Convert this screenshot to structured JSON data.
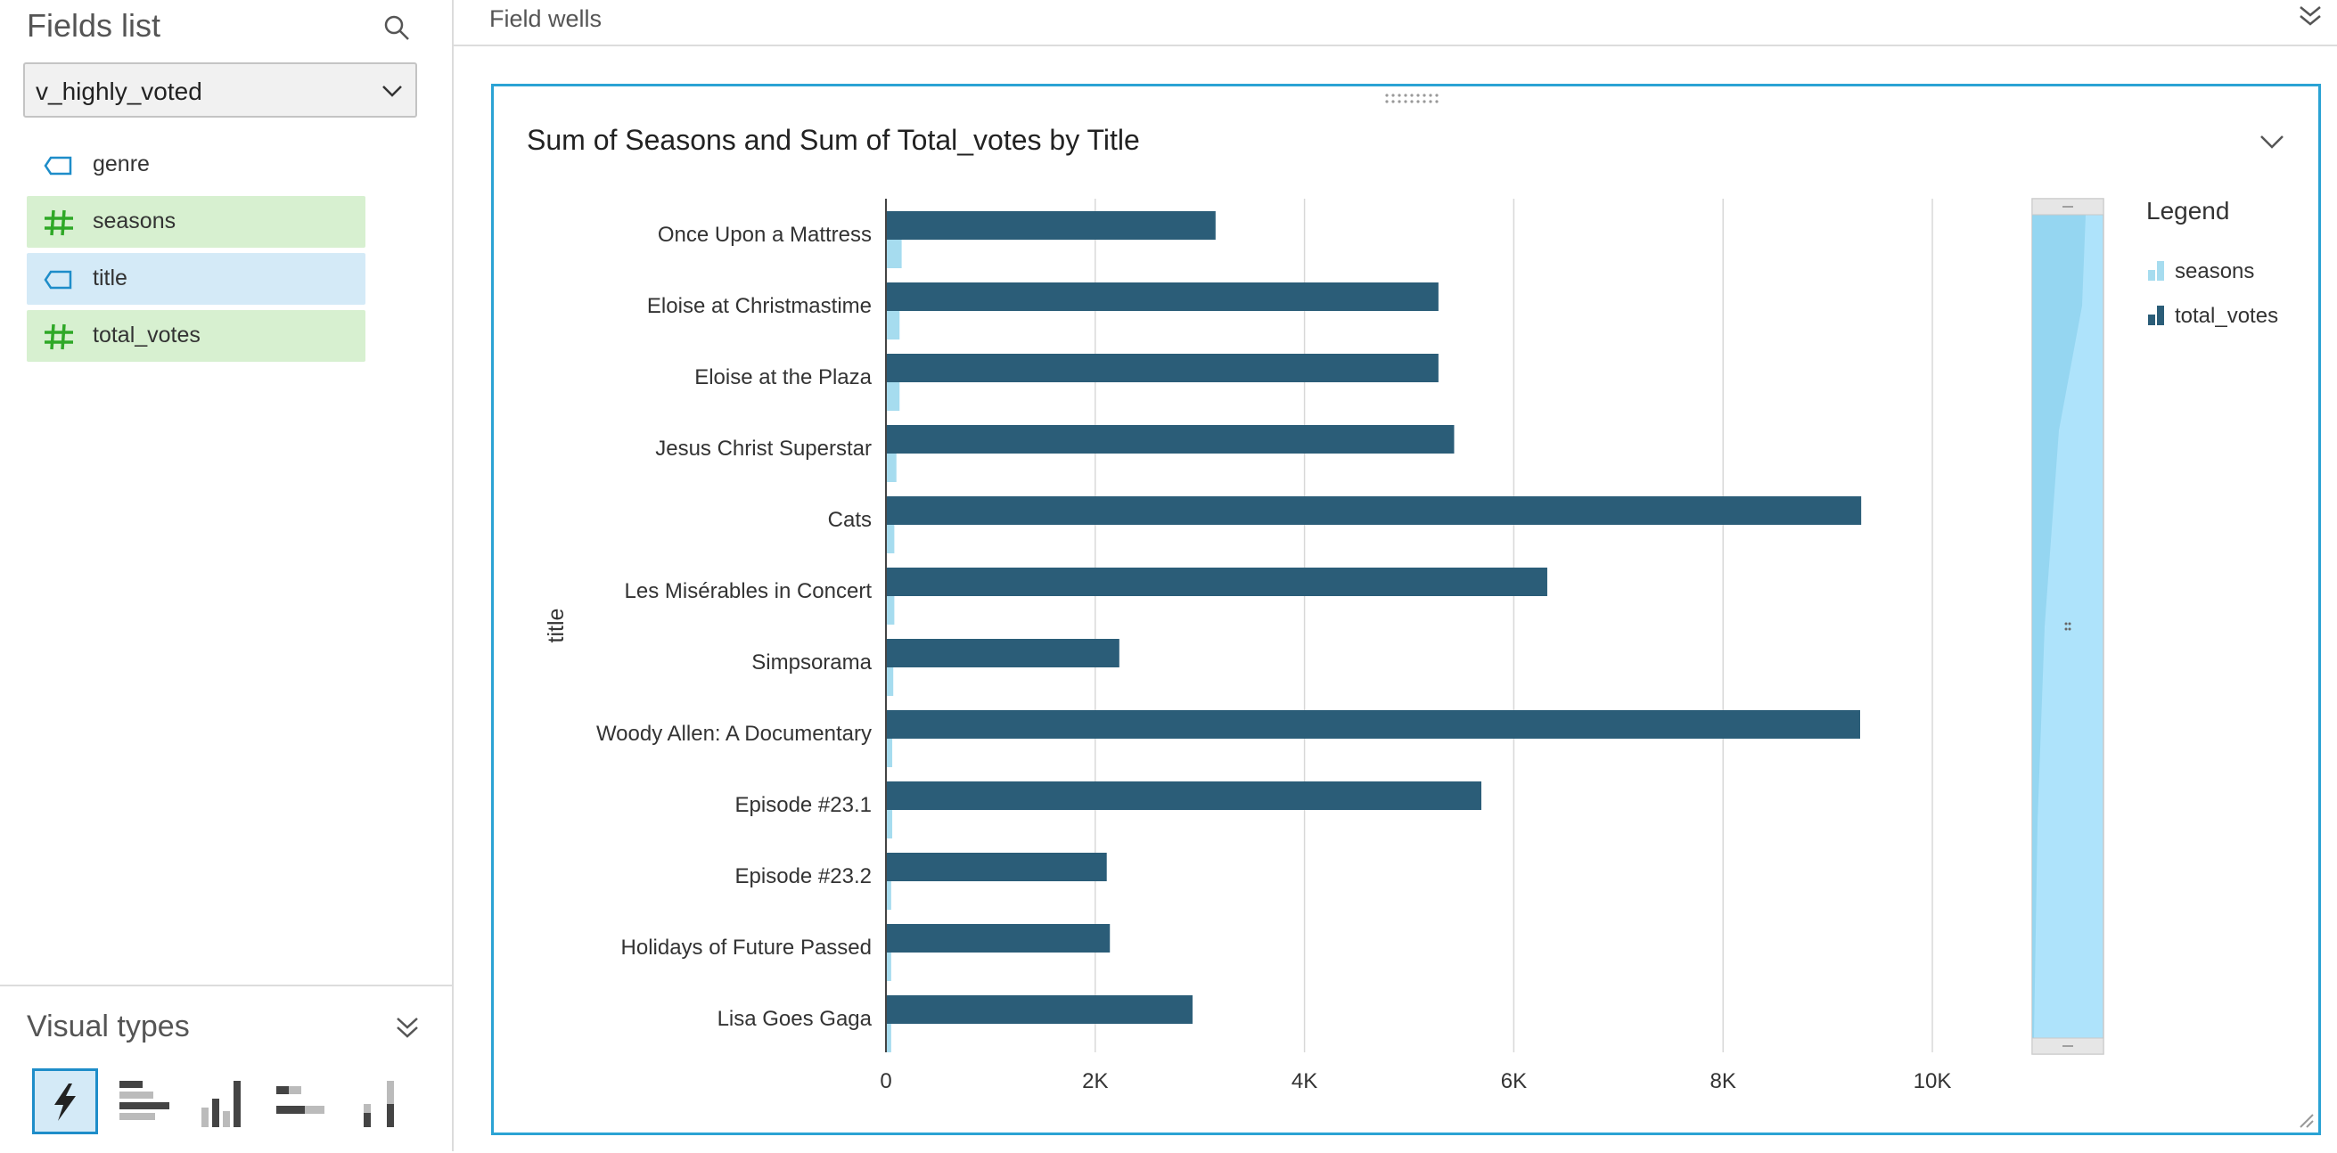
{
  "fields_list": {
    "title": "Fields list",
    "dataset": "v_highly_voted",
    "fields": [
      {
        "label": "genre",
        "kind": "dimension",
        "state": "plain"
      },
      {
        "label": "seasons",
        "kind": "measure",
        "state": "measure"
      },
      {
        "label": "title",
        "kind": "dimension",
        "state": "selected"
      },
      {
        "label": "total_votes",
        "kind": "measure",
        "state": "measure"
      }
    ]
  },
  "visual_types": {
    "title": "Visual types",
    "icons": [
      "autograph-icon",
      "horizontal-bar-icon",
      "vertical-bar-icon",
      "stacked-horizontal-bar-icon",
      "stacked-vertical-bar-icon"
    ]
  },
  "field_wells": {
    "label": "Field wells"
  },
  "visual": {
    "title": "Sum of Seasons and Sum of Total_votes by Title"
  },
  "legend": {
    "title": "Legend",
    "items": [
      {
        "label": "seasons",
        "color": "#a6dcef"
      },
      {
        "label": "total_votes",
        "color": "#2b5d78"
      }
    ]
  },
  "chart_data": {
    "type": "bar",
    "orientation": "horizontal",
    "ylabel": "title",
    "xlim": [
      0,
      10000
    ],
    "xticks": [
      0,
      2000,
      4000,
      6000,
      8000,
      10000
    ],
    "xtick_labels": [
      "0",
      "2K",
      "4K",
      "6K",
      "8K",
      "10K"
    ],
    "grid": true,
    "legend_position": "right",
    "categories": [
      "Once Upon a Mattress",
      "Eloise at Christmastime",
      "Eloise at the Plaza",
      "Jesus Christ Superstar",
      "Cats",
      "Les Misérables in Concert",
      "Simpsorama",
      "Woody Allen: A Documentary",
      "Episode #23.1",
      "Episode #23.2",
      "Holidays of Future Passed",
      "Lisa Goes Gaga"
    ],
    "series": [
      {
        "name": "total_votes",
        "color": "#2b5d78",
        "values": [
          3150,
          5280,
          5280,
          5430,
          9320,
          6320,
          2230,
          9310,
          5690,
          2110,
          2140,
          2930
        ]
      },
      {
        "name": "seasons",
        "color": "#a6dcef",
        "values": [
          150,
          130,
          130,
          100,
          80,
          80,
          70,
          60,
          60,
          50,
          50,
          50
        ]
      }
    ]
  }
}
